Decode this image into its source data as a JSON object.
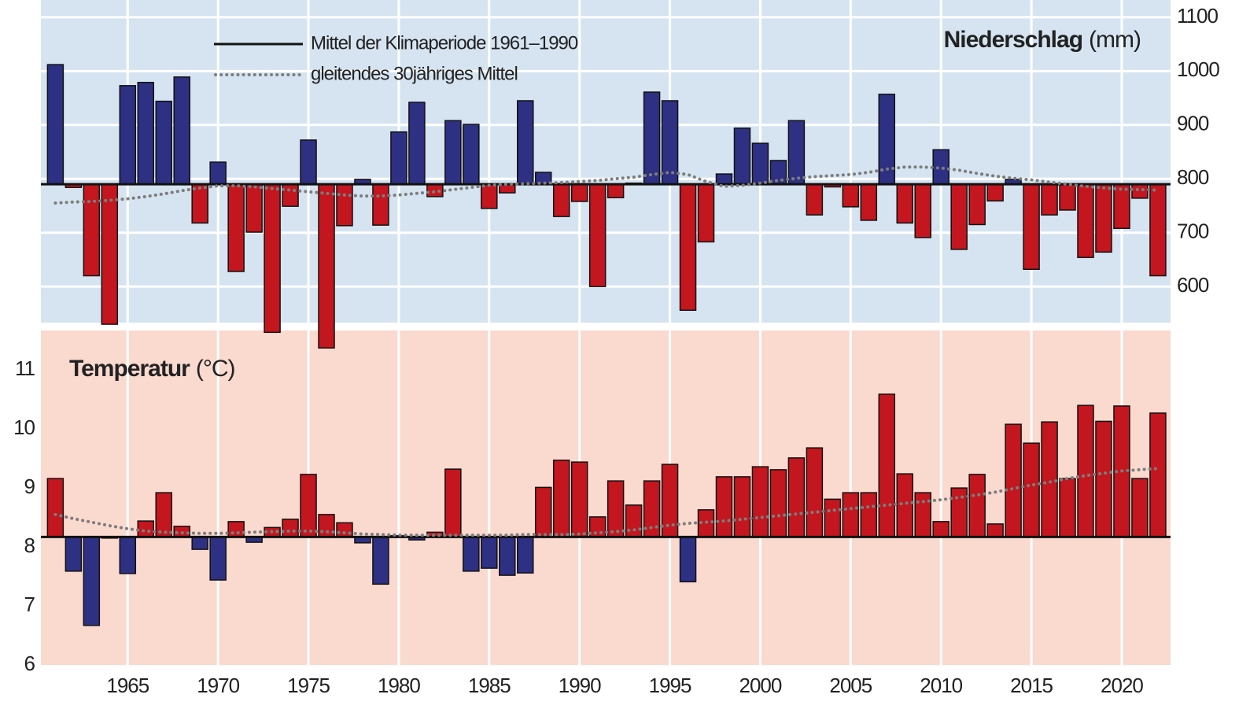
{
  "chart_data": [
    {
      "type": "bar",
      "title": "Niederschlag",
      "title_unit": "(mm)",
      "x": [
        1961,
        1962,
        1963,
        1964,
        1965,
        1966,
        1967,
        1968,
        1969,
        1970,
        1971,
        1972,
        1973,
        1974,
        1975,
        1976,
        1977,
        1978,
        1979,
        1980,
        1981,
        1982,
        1983,
        1984,
        1985,
        1986,
        1987,
        1988,
        1989,
        1990,
        1991,
        1992,
        1993,
        1994,
        1995,
        1996,
        1997,
        1998,
        1999,
        2000,
        2001,
        2002,
        2003,
        2004,
        2005,
        2006,
        2007,
        2008,
        2009,
        2010,
        2011,
        2012,
        2013,
        2014,
        2015,
        2016,
        2017,
        2018,
        2019,
        2020,
        2021,
        2022
      ],
      "values": [
        1012,
        784,
        620,
        530,
        973,
        979,
        944,
        989,
        718,
        831,
        628,
        701,
        515,
        749,
        872,
        486,
        713,
        799,
        714,
        887,
        942,
        767,
        908,
        901,
        745,
        774,
        945,
        812,
        730,
        758,
        600,
        765,
        792,
        961,
        945,
        556,
        683,
        809,
        894,
        866,
        834,
        908,
        733,
        785,
        748,
        723,
        957,
        718,
        691,
        854,
        669,
        715,
        759,
        799,
        632,
        733,
        742,
        654,
        664,
        708,
        764,
        620
      ],
      "above_color": "#2e3083",
      "below_color": "#c3161e",
      "background": "#d5e4f0",
      "reference": {
        "name": "Mittel der Klimaperiode 1961–1990",
        "value": 790,
        "color": "#111111"
      },
      "moving_average": {
        "name": "gleitendes 30jähriges Mittel",
        "color": "#7d7d7d",
        "values": [
          755,
          757,
          758,
          760,
          763,
          767,
          772,
          778,
          783,
          787,
          787,
          785,
          782,
          779,
          776,
          773,
          770,
          768,
          768,
          770,
          773,
          776,
          780,
          784,
          788,
          790,
          791,
          792,
          793,
          795,
          797,
          800,
          803,
          808,
          812,
          808,
          795,
          786,
          788,
          792,
          797,
          801,
          804,
          806,
          808,
          812,
          818,
          822,
          822,
          820,
          816,
          810,
          805,
          801,
          798,
          794,
          790,
          786,
          783,
          781,
          780,
          779
        ]
      },
      "xlim": [
        1960.2,
        2022.7
      ],
      "ylim": [
        533,
        1132
      ],
      "yticks": [
        600,
        700,
        800,
        900,
        1000,
        1100
      ],
      "y_axis_side": "right",
      "grid": "both"
    },
    {
      "type": "bar",
      "title": "Temperatur",
      "title_unit": "(°C)",
      "x": [
        1961,
        1962,
        1963,
        1964,
        1965,
        1966,
        1967,
        1968,
        1969,
        1970,
        1971,
        1972,
        1973,
        1974,
        1975,
        1976,
        1977,
        1978,
        1979,
        1980,
        1981,
        1982,
        1983,
        1984,
        1985,
        1986,
        1987,
        1988,
        1989,
        1990,
        1991,
        1992,
        1993,
        1994,
        1995,
        1996,
        1997,
        1998,
        1999,
        2000,
        2001,
        2002,
        2003,
        2004,
        2005,
        2006,
        2007,
        2008,
        2009,
        2010,
        2011,
        2012,
        2013,
        2014,
        2015,
        2016,
        2017,
        2018,
        2019,
        2020,
        2021,
        2022
      ],
      "values": [
        9.16,
        7.59,
        6.67,
        8.15,
        7.55,
        8.44,
        8.92,
        8.35,
        7.96,
        7.44,
        8.43,
        8.08,
        8.33,
        8.47,
        9.23,
        8.55,
        8.41,
        8.07,
        7.37,
        8.19,
        8.12,
        8.25,
        9.32,
        7.59,
        7.64,
        7.52,
        7.56,
        9.01,
        9.47,
        9.44,
        8.51,
        9.12,
        8.71,
        9.12,
        9.4,
        7.41,
        8.63,
        9.19,
        9.19,
        9.36,
        9.31,
        9.51,
        9.68,
        8.81,
        8.92,
        8.92,
        10.59,
        9.24,
        8.92,
        8.43,
        9.0,
        9.23,
        8.39,
        10.08,
        9.76,
        10.12,
        9.16,
        10.4,
        10.13,
        10.39,
        9.16,
        10.27
      ],
      "above_color": "#c3161e",
      "below_color": "#2e3083",
      "background": "#fad9cf",
      "reference": {
        "value": 8.17,
        "color": "#111111"
      },
      "moving_average": {
        "color": "#7d7d7d",
        "values": [
          8.55,
          8.48,
          8.42,
          8.36,
          8.31,
          8.27,
          8.25,
          8.24,
          8.23,
          8.23,
          8.24,
          8.25,
          8.26,
          8.27,
          8.27,
          8.26,
          8.24,
          8.22,
          8.21,
          8.2,
          8.2,
          8.2,
          8.2,
          8.2,
          8.2,
          8.2,
          8.21,
          8.21,
          8.21,
          8.22,
          8.24,
          8.26,
          8.29,
          8.33,
          8.37,
          8.4,
          8.42,
          8.44,
          8.47,
          8.5,
          8.53,
          8.56,
          8.59,
          8.62,
          8.65,
          8.68,
          8.71,
          8.74,
          8.77,
          8.8,
          8.84,
          8.88,
          8.93,
          8.99,
          9.05,
          9.1,
          9.16,
          9.21,
          9.25,
          9.29,
          9.31,
          9.33
        ]
      },
      "xlim": [
        1960.2,
        2022.7
      ],
      "ylim": [
        6,
        11.67
      ],
      "yticks": [
        6,
        7,
        8,
        9,
        10,
        11
      ],
      "xticks": [
        1965,
        1970,
        1975,
        1980,
        1985,
        1990,
        1995,
        2000,
        2005,
        2010,
        2015,
        2020
      ],
      "y_axis_side": "left",
      "grid": "x"
    }
  ]
}
